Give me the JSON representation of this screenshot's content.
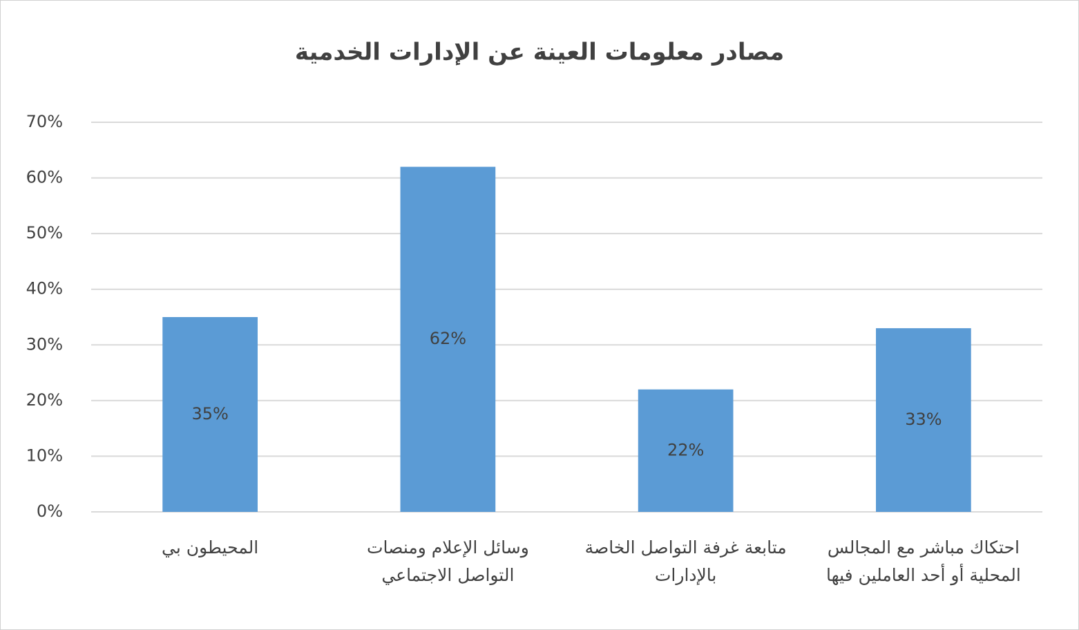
{
  "chart_data": {
    "type": "bar",
    "title": "مصادر معلومات العينة عن الإدارات الخدمية",
    "categories": [
      "المحيطون بي",
      "وسائل الإعلام ومنصات\nالتواصل الاجتماعي",
      "متابعة غرفة التواصل الخاصة\nبالإدارات",
      "احتكاك مباشر مع المجالس\nالمحلية أو أحد العاملين فيها"
    ],
    "values": [
      35,
      62,
      22,
      33
    ],
    "value_labels": [
      "35%",
      "62%",
      "22%",
      "33%"
    ],
    "color": "#5b9bd5",
    "ylim": [
      0,
      70
    ],
    "yticks": [
      {
        "value": 0,
        "label": "0%"
      },
      {
        "value": 10,
        "label": "10%"
      },
      {
        "value": 20,
        "label": "20%"
      },
      {
        "value": 30,
        "label": "30%"
      },
      {
        "value": 40,
        "label": "40%"
      },
      {
        "value": 50,
        "label": "50%"
      },
      {
        "value": 60,
        "label": "60%"
      },
      {
        "value": 70,
        "label": "70%"
      }
    ],
    "grid": true
  }
}
